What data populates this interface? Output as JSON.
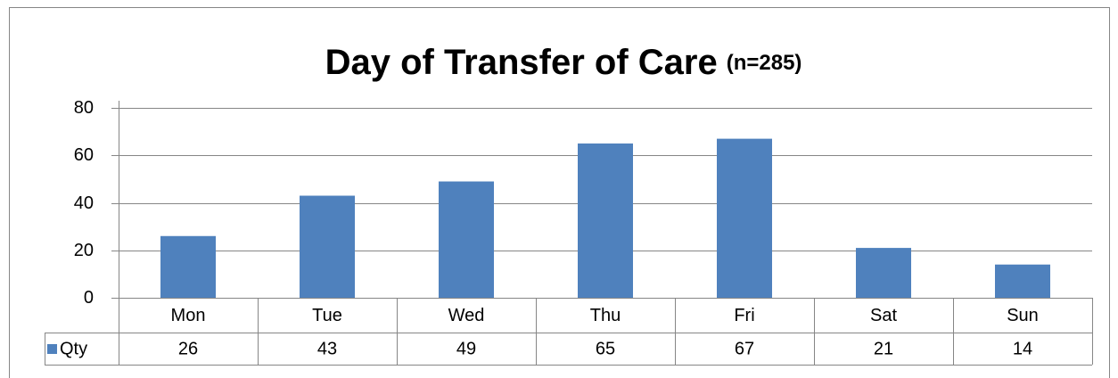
{
  "chart_data": {
    "type": "bar",
    "title": "Day of Transfer of Care",
    "subtitle": "(n=285)",
    "categories": [
      "Mon",
      "Tue",
      "Wed",
      "Thu",
      "Fri",
      "Sat",
      "Sun"
    ],
    "series": [
      {
        "name": "Qty",
        "color": "#4f81bd",
        "values": [
          26,
          43,
          49,
          65,
          67,
          21,
          14
        ]
      }
    ],
    "ylim": [
      0,
      80
    ],
    "yticks": [
      0,
      20,
      40,
      60,
      80
    ],
    "grid": true
  }
}
